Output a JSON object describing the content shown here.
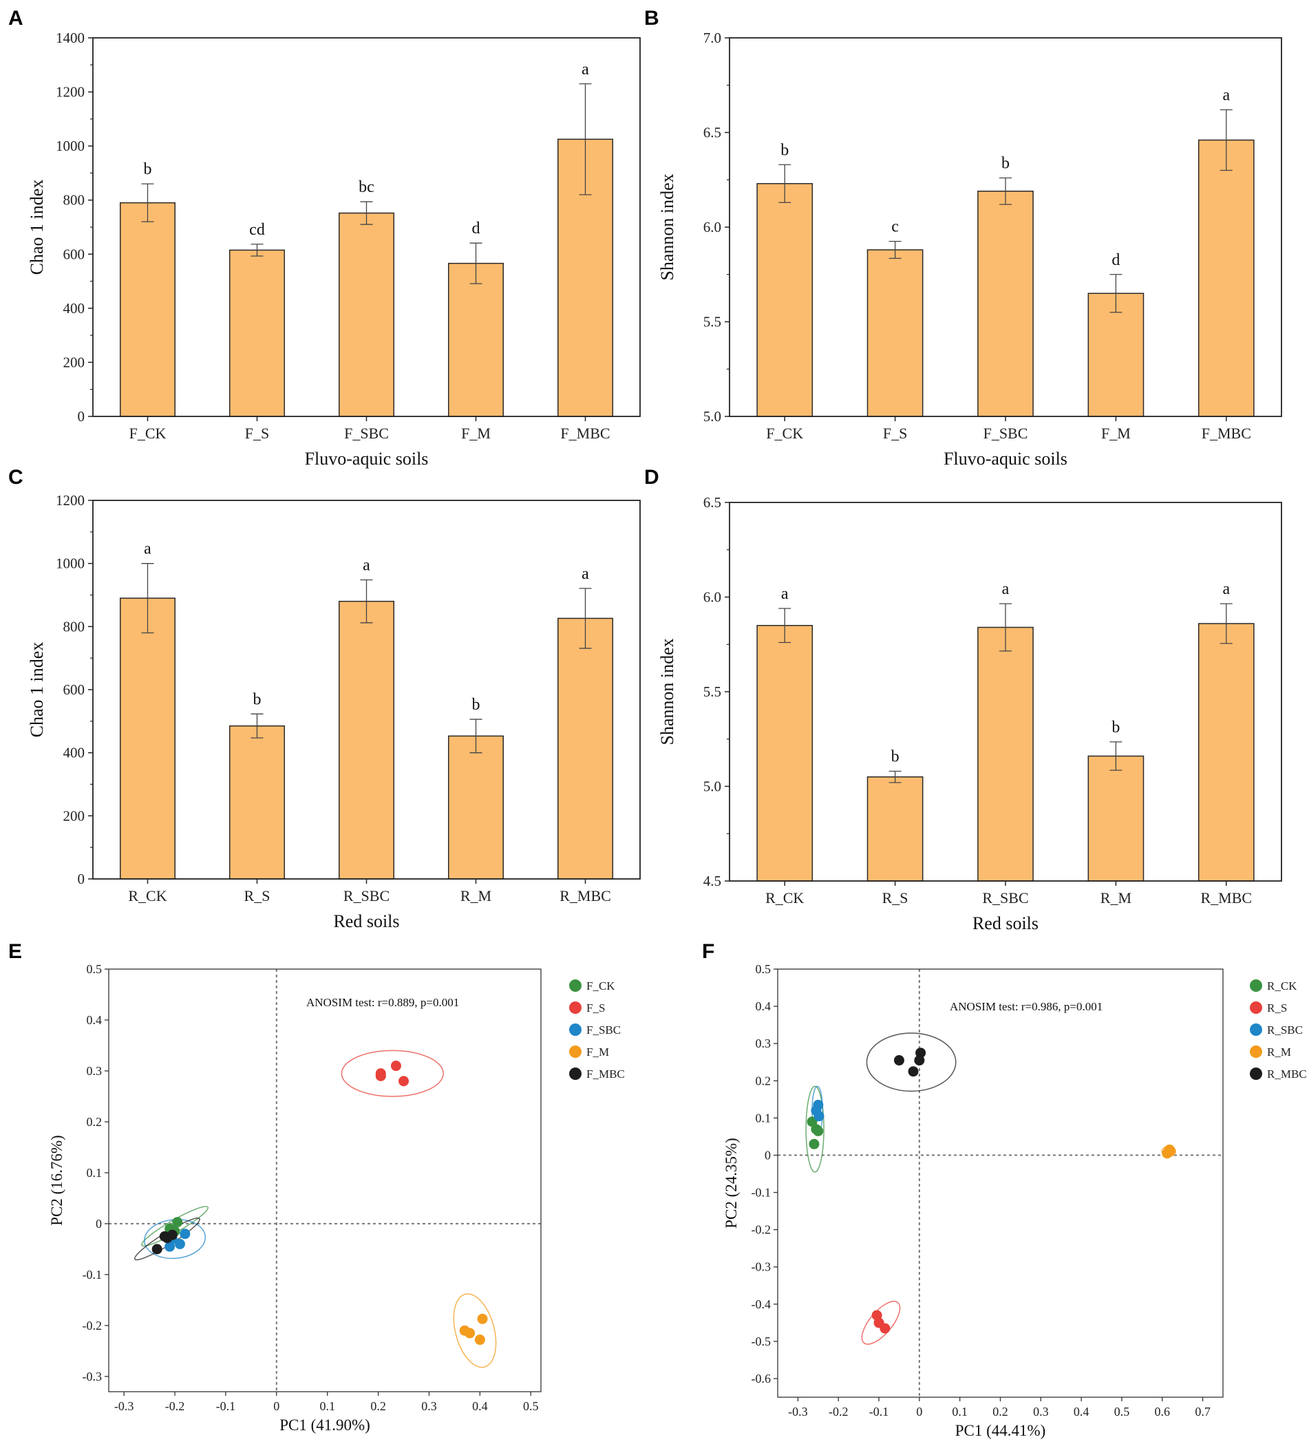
{
  "colors": {
    "bar_fill": "#fbbc6f",
    "bar_stroke": "#2a2a2a",
    "CK": "#3a9140",
    "S": "#e8403a",
    "SBC": "#1f86c8",
    "M": "#f39b1c",
    "MBC": "#1d1d1d"
  },
  "chart_data": [
    {
      "panel": "A",
      "type": "bar",
      "categories": [
        "F_CK",
        "F_S",
        "F_SBC",
        "F_M",
        "F_MBC"
      ],
      "values": [
        790,
        615,
        752,
        566,
        1025
      ],
      "errors": [
        70,
        22,
        42,
        75,
        205
      ],
      "sig_letters": [
        "b",
        "cd",
        "bc",
        "d",
        "a"
      ],
      "xlabel": "Fluvo-aquic soils",
      "ylabel": "Chao 1 index",
      "ylim": [
        0,
        1400
      ],
      "yticks": [
        0,
        200,
        400,
        600,
        800,
        1000,
        1200,
        1400
      ],
      "ytick_labels": [
        "0",
        "200",
        "400",
        "600",
        "800",
        "1000",
        "1200",
        "1400"
      ]
    },
    {
      "panel": "B",
      "type": "bar",
      "categories": [
        "F_CK",
        "F_S",
        "F_SBC",
        "F_M",
        "F_MBC"
      ],
      "values": [
        6.23,
        5.88,
        6.19,
        5.65,
        6.46
      ],
      "errors": [
        0.1,
        0.045,
        0.07,
        0.1,
        0.16
      ],
      "sig_letters": [
        "b",
        "c",
        "b",
        "d",
        "a"
      ],
      "xlabel": "Fluvo-aquic soils",
      "ylabel": "Shannon index",
      "ylim": [
        5.0,
        7.0
      ],
      "yticks": [
        5.0,
        5.5,
        6.0,
        6.5,
        7.0
      ],
      "ytick_labels": [
        "5.0",
        "5.5",
        "6.0",
        "6.5",
        "7.0"
      ]
    },
    {
      "panel": "C",
      "type": "bar",
      "categories": [
        "R_CK",
        "R_S",
        "R_SBC",
        "R_M",
        "R_MBC"
      ],
      "values": [
        890,
        485,
        880,
        453,
        826
      ],
      "errors": [
        110,
        38,
        68,
        53,
        95
      ],
      "sig_letters": [
        "a",
        "b",
        "a",
        "b",
        "a"
      ],
      "xlabel": "Red soils",
      "ylabel": "Chao 1 index",
      "ylim": [
        0,
        1200
      ],
      "yticks": [
        0,
        200,
        400,
        600,
        800,
        1000,
        1200
      ],
      "ytick_labels": [
        "0",
        "200",
        "400",
        "600",
        "800",
        "1000",
        "1200"
      ]
    },
    {
      "panel": "D",
      "type": "bar",
      "categories": [
        "R_CK",
        "R_S",
        "R_SBC",
        "R_M",
        "R_MBC"
      ],
      "values": [
        5.85,
        5.05,
        5.84,
        5.16,
        5.86
      ],
      "errors": [
        0.09,
        0.03,
        0.125,
        0.075,
        0.105
      ],
      "sig_letters": [
        "a",
        "b",
        "a",
        "b",
        "a"
      ],
      "xlabel": "Red soils",
      "ylabel": "Shannon index",
      "ylim": [
        4.5,
        6.5
      ],
      "yticks": [
        4.5,
        5.0,
        5.5,
        6.0,
        6.5
      ],
      "ytick_labels": [
        "4.5",
        "5.0",
        "5.5",
        "6.0",
        "6.5"
      ]
    },
    {
      "panel": "E",
      "type": "scatter",
      "xlabel": "PC1 (41.90%)",
      "ylabel": "PC2 (16.76%)",
      "xlim": [
        -0.33,
        0.52
      ],
      "ylim": [
        -0.33,
        0.5
      ],
      "xticks": [
        -0.3,
        -0.2,
        -0.1,
        0,
        0.1,
        0.2,
        0.3,
        0.4,
        0.5
      ],
      "xtick_labels": [
        "-0.3",
        "-0.2",
        "-0.1",
        "0",
        "0.1",
        "0.2",
        "0.3",
        "0.4",
        "0.5"
      ],
      "yticks": [
        -0.3,
        -0.2,
        -0.1,
        0,
        0.1,
        0.2,
        0.3,
        0.4,
        0.5
      ],
      "ytick_labels": [
        "-0.3",
        "-0.2",
        "-0.1",
        "0",
        "0.1",
        "0.2",
        "0.3",
        "0.4",
        "0.5"
      ],
      "annotation": "ANOSIM test: r=0.889, p=0.001",
      "legend_position": "top-right",
      "series": [
        {
          "name": "F_CK",
          "color_key": "CK",
          "points": [
            [
              -0.195,
              0.003
            ],
            [
              -0.21,
              -0.01
            ],
            [
              -0.2,
              -0.015
            ]
          ],
          "ellipse": {
            "cx": -0.2,
            "cy": -0.005,
            "rx": 0.075,
            "ry": 0.012,
            "angle": 30
          }
        },
        {
          "name": "F_S",
          "color_key": "S",
          "points": [
            [
              0.205,
              0.29
            ],
            [
              0.235,
              0.31
            ],
            [
              0.25,
              0.28
            ],
            [
              0.205,
              0.295
            ]
          ],
          "ellipse": {
            "cx": 0.228,
            "cy": 0.295,
            "rx": 0.1,
            "ry": 0.045,
            "angle": 0
          }
        },
        {
          "name": "F_SBC",
          "color_key": "SBC",
          "points": [
            [
              -0.18,
              -0.02
            ],
            [
              -0.19,
              -0.04
            ],
            [
              -0.21,
              -0.045
            ],
            [
              -0.205,
              -0.03
            ]
          ],
          "ellipse": {
            "cx": -0.2,
            "cy": -0.03,
            "rx": 0.06,
            "ry": 0.038,
            "angle": 5
          }
        },
        {
          "name": "F_M",
          "color_key": "M",
          "points": [
            [
              0.37,
              -0.21
            ],
            [
              0.38,
              -0.215
            ],
            [
              0.4,
              -0.228
            ],
            [
              0.405,
              -0.187
            ]
          ],
          "ellipse": {
            "cx": 0.39,
            "cy": -0.21,
            "rx": 0.038,
            "ry": 0.074,
            "angle": 15
          }
        },
        {
          "name": "F_MBC",
          "color_key": "MBC",
          "points": [
            [
              -0.235,
              -0.05
            ],
            [
              -0.22,
              -0.025
            ],
            [
              -0.205,
              -0.022
            ],
            [
              -0.215,
              -0.028
            ]
          ],
          "ellipse": {
            "cx": -0.215,
            "cy": -0.03,
            "rx": 0.075,
            "ry": 0.012,
            "angle": 32
          }
        }
      ]
    },
    {
      "panel": "F",
      "type": "scatter",
      "xlabel": "PC1 (44.41%)",
      "ylabel": "PC2 (24.35%)",
      "xlim": [
        -0.35,
        0.75
      ],
      "ylim": [
        -0.65,
        0.5
      ],
      "xticks": [
        -0.3,
        -0.2,
        -0.1,
        0,
        0.1,
        0.2,
        0.3,
        0.4,
        0.5,
        0.6,
        0.7
      ],
      "xtick_labels": [
        "-0.3",
        "-0.2",
        "-0.1",
        "0",
        "0.1",
        "0.2",
        "0.3",
        "0.4",
        "0.5",
        "0.6",
        "0.7"
      ],
      "yticks": [
        -0.6,
        -0.5,
        -0.4,
        -0.3,
        -0.2,
        -0.1,
        0,
        0.1,
        0.2,
        0.3,
        0.4,
        0.5
      ],
      "ytick_labels": [
        "-0.6",
        "-0.5",
        "-0.4",
        "-0.3",
        "-0.2",
        "-0.1",
        "0",
        "0.1",
        "0.2",
        "0.3",
        "0.4",
        "0.5"
      ],
      "annotation": "ANOSIM test: r=0.986, p=0.001",
      "legend_position": "top-right",
      "series": [
        {
          "name": "R_CK",
          "color_key": "CK",
          "points": [
            [
              -0.265,
              0.09
            ],
            [
              -0.255,
              0.07
            ],
            [
              -0.25,
              0.065
            ],
            [
              -0.26,
              0.03
            ]
          ],
          "ellipse": {
            "cx": -0.258,
            "cy": 0.07,
            "rx": 0.022,
            "ry": 0.115,
            "angle": 0
          }
        },
        {
          "name": "R_S",
          "color_key": "S",
          "points": [
            [
              -0.105,
              -0.43
            ],
            [
              -0.1,
              -0.45
            ],
            [
              -0.085,
              -0.465
            ]
          ],
          "ellipse": {
            "cx": -0.095,
            "cy": -0.45,
            "rx": 0.065,
            "ry": 0.03,
            "angle": 50
          }
        },
        {
          "name": "R_SBC",
          "color_key": "SBC",
          "points": [
            [
              -0.25,
              0.135
            ],
            [
              -0.248,
              0.105
            ],
            [
              -0.255,
              0.12
            ]
          ],
          "ellipse": {
            "cx": -0.252,
            "cy": 0.12,
            "rx": 0.013,
            "ry": 0.065,
            "angle": 0
          }
        },
        {
          "name": "R_M",
          "color_key": "M",
          "points": [
            [
              0.612,
              0.005
            ],
            [
              0.615,
              0.01
            ],
            [
              0.618,
              0.015
            ],
            [
              0.62,
              0.012
            ]
          ],
          "ellipse": {
            "cx": 0.616,
            "cy": 0.01,
            "rx": 0.017,
            "ry": 0.014,
            "angle": 0
          }
        },
        {
          "name": "R_MBC",
          "color_key": "MBC",
          "points": [
            [
              -0.05,
              0.255
            ],
            [
              -0.015,
              0.225
            ],
            [
              0.0,
              0.255
            ],
            [
              0.003,
              0.275
            ]
          ],
          "ellipse": {
            "cx": -0.02,
            "cy": 0.25,
            "rx": 0.11,
            "ry": 0.078,
            "angle": 0
          }
        }
      ]
    }
  ]
}
